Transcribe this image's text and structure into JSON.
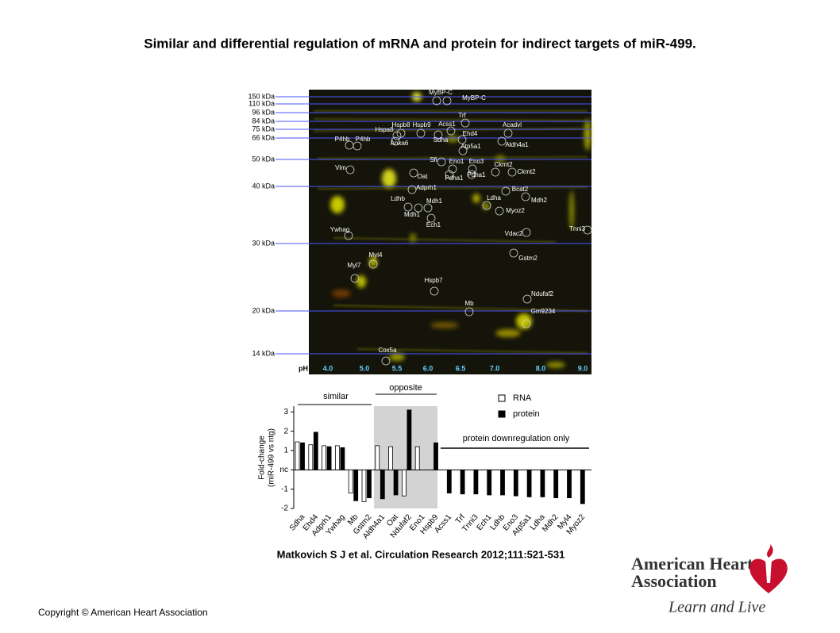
{
  "title": "Similar and differential regulation of mRNA and protein for indirect targets of miR-499.",
  "gel": {
    "mw_markers": [
      "150 kDa",
      "110 kDa",
      "96 kDa",
      "84 kDa",
      "75 kDa",
      "66 kDa",
      "50 kDa",
      "40 kDa",
      "30 kDa",
      "20 kDa",
      "14 kDa"
    ],
    "ph_label": "pH",
    "ph_values": [
      "4.0",
      "5.0",
      "5.5",
      "6.0",
      "6.5",
      "7.0",
      "8.0",
      "9.0"
    ],
    "spots": [
      "MyBP-C",
      "MyBP-C",
      "Hspb8",
      "Hspb9",
      "Acss1",
      "Trf",
      "Hspa8",
      "Ehd4",
      "Acadvl",
      "Anxa6",
      "Sdha",
      "Atp5a1",
      "Aldh4a1",
      "P4hb",
      "P4hb",
      "Sfi",
      "Eno1",
      "Eno3",
      "Ckmt2",
      "Ckmt2",
      "Vim",
      "Oat",
      "Pdha1",
      "Pdha1",
      "Adprh1",
      "Bcat2",
      "Ldhb",
      "Ldha",
      "Mdh2",
      "Mdh1",
      "Mdh1",
      "Myoz2",
      "Ech1",
      "Tnni3",
      "Ywhag",
      "Vdac2",
      "Myl4",
      "Gstm2",
      "Myl7",
      "Hspb7",
      "Ndufaf2",
      "Mb",
      "Gm9234",
      "Cox5a"
    ]
  },
  "chart_data": {
    "type": "bar",
    "y_label": [
      "Fold-change",
      "(miR-499 vs ntg)"
    ],
    "annotations": [
      "similar",
      "opposite",
      "protein downregulation only"
    ],
    "categories": [
      "Sdha",
      "Ehd4",
      "Adprh1",
      "Ywhag",
      "Mb",
      "Gstm2",
      "Aldh4a1",
      "Oat",
      "Ndufaf2",
      "Eno1",
      "Hspb9",
      "Acss1",
      "Trf",
      "Tnni3",
      "Ech1",
      "Ldhb",
      "Eno3",
      "Atp5a1",
      "Ldha",
      "Mdh2",
      "Myl4",
      "Myoz2"
    ],
    "series": [
      {
        "name": "RNA",
        "color": "#ffffff",
        "values": [
          1.45,
          1.3,
          1.25,
          1.25,
          -1.2,
          -1.65,
          1.25,
          1.2,
          -1.35,
          1.2,
          null,
          null,
          null,
          null,
          null,
          null,
          null,
          null,
          null,
          null,
          null,
          null
        ]
      },
      {
        "name": "protein",
        "color": "#000000",
        "values": [
          1.4,
          1.95,
          1.2,
          1.15,
          -1.6,
          -1.45,
          -1.5,
          -1.3,
          3.1,
          null,
          1.4,
          -1.2,
          -1.25,
          -1.25,
          -1.3,
          -1.3,
          -1.35,
          -1.4,
          -1.4,
          -1.45,
          -1.45,
          -1.75
        ]
      }
    ],
    "ylim": [
      -2,
      3.3
    ],
    "yticks": [
      3,
      2,
      1,
      {
        "value": 0,
        "label": "nc"
      },
      -1,
      -2
    ]
  },
  "caption": "Matkovich S J et al. Circulation Research 2012;111:521-531",
  "copyright": "Copyright © American Heart Association",
  "logo": {
    "line1": "American Heart",
    "line2": "Association",
    "tagline": "Learn and Live"
  }
}
